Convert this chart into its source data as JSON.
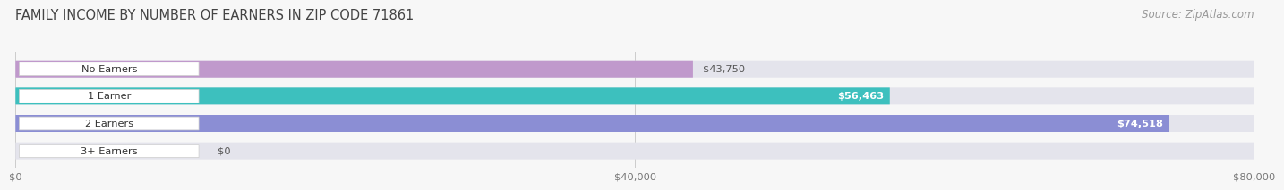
{
  "title": "FAMILY INCOME BY NUMBER OF EARNERS IN ZIP CODE 71861",
  "source": "Source: ZipAtlas.com",
  "categories": [
    "No Earners",
    "1 Earner",
    "2 Earners",
    "3+ Earners"
  ],
  "values": [
    43750,
    56463,
    74518,
    0
  ],
  "bar_colors": [
    "#c099cc",
    "#3dc0be",
    "#8b8ed4",
    "#f5a8c0"
  ],
  "xmax": 80000,
  "xticks": [
    0,
    40000,
    80000
  ],
  "xtick_labels": [
    "$0",
    "$40,000",
    "$80,000"
  ],
  "value_labels": [
    "$43,750",
    "$56,463",
    "$74,518",
    "$0"
  ],
  "value_label_inside": [
    false,
    true,
    true,
    false
  ],
  "background_color": "#f7f7f7",
  "bar_bg_color": "#e4e4ec",
  "title_fontsize": 10.5,
  "source_fontsize": 8.5
}
